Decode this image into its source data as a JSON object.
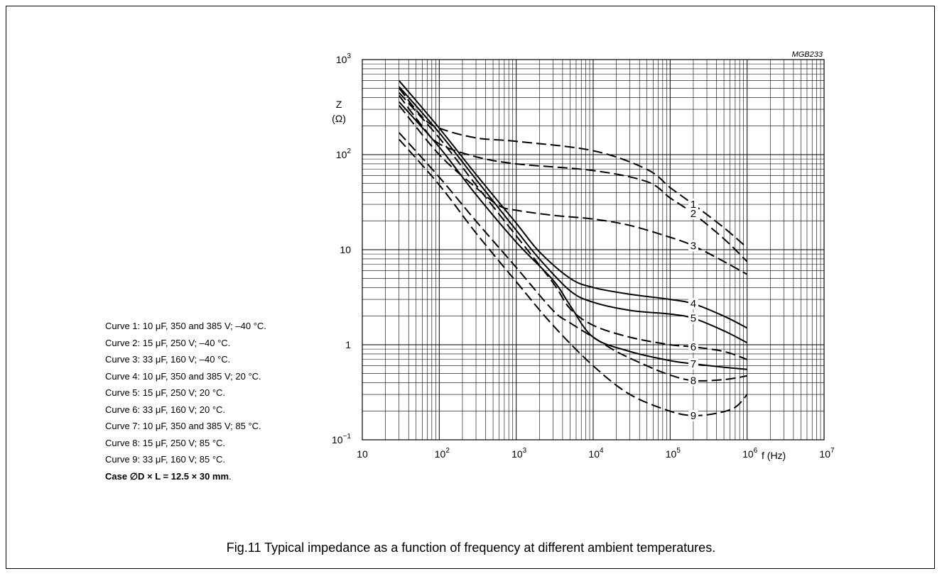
{
  "chart_data": {
    "type": "line",
    "title": "",
    "figure_code": "MGB233",
    "xscale": "log",
    "yscale": "log",
    "xlim": [
      10,
      10000000
    ],
    "ylim": [
      0.1,
      1000
    ],
    "grid": true,
    "x_ticks": [
      {
        "base": "10",
        "exp": ""
      },
      {
        "base": "10",
        "exp": "2"
      },
      {
        "base": "10",
        "exp": "3"
      },
      {
        "base": "10",
        "exp": "4"
      },
      {
        "base": "10",
        "exp": "5"
      },
      {
        "base": "10",
        "exp": "6"
      },
      {
        "base": "10",
        "exp": "7"
      }
    ],
    "y_ticks": [
      {
        "base": "10",
        "exp": "−1"
      },
      {
        "base": "1",
        "exp": ""
      },
      {
        "base": "10",
        "exp": ""
      },
      {
        "base": "10",
        "exp": "2"
      },
      {
        "base": "10",
        "exp": "3"
      }
    ],
    "xlabel": "f  (Hz)",
    "ylabel_line1": "Z",
    "ylabel_line2": "(Ω)",
    "series": [
      {
        "label": "1",
        "style": "dashed",
        "x": [
          30,
          60,
          100,
          300,
          1000,
          10000,
          50000,
          100000,
          200000,
          500000,
          1000000
        ],
        "y": [
          500,
          250,
          190,
          150,
          138,
          110,
          70,
          45,
          30,
          17,
          10.5
        ]
      },
      {
        "label": "2",
        "style": "dashed",
        "x": [
          30,
          60,
          100,
          300,
          1000,
          10000,
          50000,
          100000,
          200000,
          500000,
          1000000
        ],
        "y": [
          420,
          200,
          130,
          95,
          80,
          68,
          52,
          35,
          24,
          13,
          7.5
        ]
      },
      {
        "label": "3",
        "style": "dashed",
        "x": [
          30,
          100,
          300,
          600,
          1000,
          3000,
          10000,
          30000,
          100000,
          200000,
          500000,
          1000000
        ],
        "y": [
          330,
          100,
          45,
          29,
          26,
          23,
          21,
          18,
          13.5,
          11,
          7.5,
          5.5
        ]
      },
      {
        "label": "4",
        "style": "solid",
        "x": [
          30,
          100,
          300,
          1000,
          2000,
          5000,
          10000,
          30000,
          100000,
          200000,
          500000,
          1000000
        ],
        "y": [
          600,
          190,
          62,
          19,
          9.5,
          5,
          4,
          3.4,
          3,
          2.7,
          2,
          1.5
        ]
      },
      {
        "label": "5",
        "style": "solid",
        "x": [
          30,
          100,
          300,
          1000,
          2000,
          5000,
          10000,
          30000,
          100000,
          200000,
          500000,
          1000000
        ],
        "y": [
          520,
          170,
          55,
          16,
          8,
          3.7,
          2.8,
          2.3,
          2.1,
          1.9,
          1.4,
          1.05
        ]
      },
      {
        "label": "6",
        "style": "dashed",
        "x": [
          30,
          100,
          300,
          1000,
          3000,
          5000,
          10000,
          30000,
          100000,
          200000,
          500000,
          1000000
        ],
        "y": [
          450,
          150,
          48,
          14,
          4.5,
          2.4,
          1.6,
          1.2,
          1,
          0.95,
          0.85,
          0.7
        ]
      },
      {
        "label": "7",
        "style": "solid",
        "x": [
          30,
          100,
          300,
          1000,
          3000,
          5000,
          10000,
          30000,
          100000,
          200000,
          500000,
          1000000
        ],
        "y": [
          360,
          120,
          38,
          12,
          4.8,
          2.6,
          1.2,
          0.85,
          0.68,
          0.63,
          0.58,
          0.55
        ]
      },
      {
        "label": "8",
        "style": "dashed",
        "x": [
          30,
          100,
          300,
          1000,
          3000,
          5000,
          10000,
          20000,
          50000,
          100000,
          200000,
          500000,
          1000000
        ],
        "y": [
          170,
          58,
          20,
          6.5,
          2.3,
          1.7,
          1.2,
          0.85,
          0.6,
          0.48,
          0.42,
          0.43,
          0.47
        ]
      },
      {
        "label": "9",
        "style": "dashed",
        "x": [
          30,
          100,
          300,
          1000,
          3000,
          10000,
          30000,
          100000,
          200000,
          400000,
          700000,
          1000000
        ],
        "y": [
          145,
          48,
          15,
          4.6,
          1.6,
          0.6,
          0.3,
          0.2,
          0.18,
          0.19,
          0.22,
          0.3
        ]
      }
    ]
  },
  "legend": [
    {
      "prefix": "Curve 1: 10 ",
      "unit": "μF",
      "rest": ", 350 and 385 V; –40 °C."
    },
    {
      "prefix": "Curve 2: 15 ",
      "unit": "μF",
      "rest": ", 250 V; –40 °C."
    },
    {
      "prefix": "Curve 3: 33 ",
      "unit": "μF",
      "rest": ", 160 V; –40 °C."
    },
    {
      "prefix": "Curve 4: 10 ",
      "unit": "μF",
      "rest": ", 350 and 385 V; 20 °C."
    },
    {
      "prefix": "Curve 5: 15 ",
      "unit": "μF",
      "rest": ", 250 V; 20 °C."
    },
    {
      "prefix": "Curve 6: 33 ",
      "unit": "μF",
      "rest": ", 160 V; 20 °C."
    },
    {
      "prefix": "Curve 7: 10 ",
      "unit": "μF",
      "rest": ", 350 and 385 V; 85 °C."
    },
    {
      "prefix": "Curve 8: 15 ",
      "unit": "μF",
      "rest": ", 250 V; 85 °C."
    },
    {
      "prefix": "Curve 9: 33 ",
      "unit": "μF",
      "rest": ", 160 V; 85 °C."
    }
  ],
  "case_note": {
    "bold": "Case ∅D × L = 12.5 × 30 mm",
    "tail": "."
  },
  "caption": "Fig.11  Typical impedance as a function of frequency at different ambient temperatures."
}
